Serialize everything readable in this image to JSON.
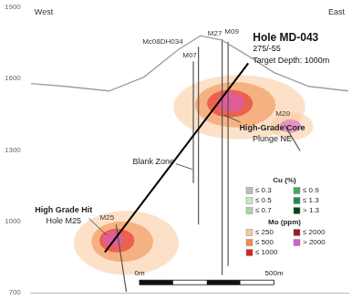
{
  "chart_data": {
    "type": "section",
    "side_labels": {
      "left": "West",
      "right": "East"
    },
    "xlim": [
      0,
      1180
    ],
    "ylim": [
      700,
      1900
    ],
    "yticks": [
      700,
      1000,
      1300,
      1600,
      1900
    ],
    "grid": false,
    "tick_labels": "y",
    "topography": {
      "color": "#9e9e9e",
      "x": [
        0,
        129,
        291,
        420,
        549,
        630,
        711,
        808,
        904,
        1034,
        1180
      ],
      "y": [
        1579,
        1567,
        1548,
        1606,
        1722,
        1780,
        1761,
        1695,
        1625,
        1567,
        1548
      ]
    },
    "holes": [
      {
        "label": [
          "Hole MD-043",
          "275/-55",
          "Target Depth: 1000m"
        ],
        "color": "#000000",
        "x": [
          808,
          275
        ],
        "y": [
          1664,
          871
        ]
      },
      {
        "label": [
          "Mc08DH034"
        ],
        "color": "#555555",
        "x": [
          623,
          623
        ],
        "y": [
          1734,
          987
        ]
      },
      {
        "label": [
          "M07"
        ],
        "color": "#555555",
        "x": [
          604,
          604
        ],
        "y": [
          1672,
          1161
        ]
      },
      {
        "label": [
          "M27"
        ],
        "color": "#555555",
        "x": [
          711,
          711
        ],
        "y": [
          1765,
          774
        ]
      },
      {
        "label": [
          "M09"
        ],
        "color": "#555555",
        "x": [
          733,
          733
        ],
        "y": [
          1755,
          813
        ]
      },
      {
        "label": [
          "M20"
        ],
        "color": "#555555",
        "x": [
          943,
          1001
        ],
        "y": [
          1405,
          1296
        ]
      },
      {
        "label": [
          "M25"
        ],
        "color": "#555555",
        "x": [
          317,
          355
        ],
        "y": [
          987,
          704
        ]
      }
    ],
    "mo_zones": [
      {
        "x": 775,
        "y": 1480,
        "rx": 245,
        "ry": 135,
        "color": "#f9c89b"
      },
      {
        "x": 760,
        "y": 1490,
        "rx": 150,
        "ry": 95,
        "color": "#f08a4b"
      },
      {
        "x": 740,
        "y": 1495,
        "rx": 85,
        "ry": 58,
        "color": "#e02020"
      },
      {
        "x": 745,
        "y": 1500,
        "rx": 50,
        "ry": 40,
        "color": "#d45bd0"
      },
      {
        "x": 970,
        "y": 1400,
        "rx": 80,
        "ry": 58,
        "color": "#f9c89b"
      },
      {
        "x": 965,
        "y": 1400,
        "rx": 40,
        "ry": 28,
        "color": "#d45bd0"
      },
      {
        "x": 355,
        "y": 910,
        "rx": 195,
        "ry": 135,
        "color": "#f9c89b"
      },
      {
        "x": 340,
        "y": 915,
        "rx": 115,
        "ry": 85,
        "color": "#f08a4b"
      },
      {
        "x": 320,
        "y": 920,
        "rx": 65,
        "ry": 50,
        "color": "#e02020"
      },
      {
        "x": 305,
        "y": 925,
        "rx": 40,
        "ry": 32,
        "color": "#d45bd0"
      }
    ],
    "annotations": [
      {
        "lines": [
          "Blank Zone"
        ],
        "x": 607,
        "y": 1219
      },
      {
        "lines": [
          "High-Grade Core",
          "Plunge NE"
        ],
        "x": 711,
        "y": 1451
      },
      {
        "lines": [
          "High Grade Hit",
          "Hole M25"
        ],
        "x": 291,
        "y": 936
      }
    ],
    "legends": [
      {
        "title": "Cu (%)",
        "items": [
          {
            "label": "≤ 0.3",
            "color": "#bdbdbd"
          },
          {
            "label": "≤ 0.5",
            "color": "#c7e9c0"
          },
          {
            "label": "≤ 0.7",
            "color": "#a1d99b"
          },
          {
            "label": "≤ 0.9",
            "color": "#41ab5d"
          },
          {
            "label": "≤ 1.3",
            "color": "#238b45"
          },
          {
            "label": "> 1.3",
            "color": "#00441b"
          }
        ]
      },
      {
        "title": "Mo (ppm)",
        "items": [
          {
            "label": "≤ 250",
            "color": "#f9c89b"
          },
          {
            "label": "≤ 500",
            "color": "#f08a4b"
          },
          {
            "label": "≤ 1000",
            "color": "#e02020"
          },
          {
            "label": "≤ 2000",
            "color": "#a0182a"
          },
          {
            "label": "> 2000",
            "color": "#d45bd0"
          }
        ]
      }
    ],
    "scale_bar": {
      "start": 404,
      "length": 500,
      "labels": [
        "0m",
        "500m"
      ]
    }
  }
}
